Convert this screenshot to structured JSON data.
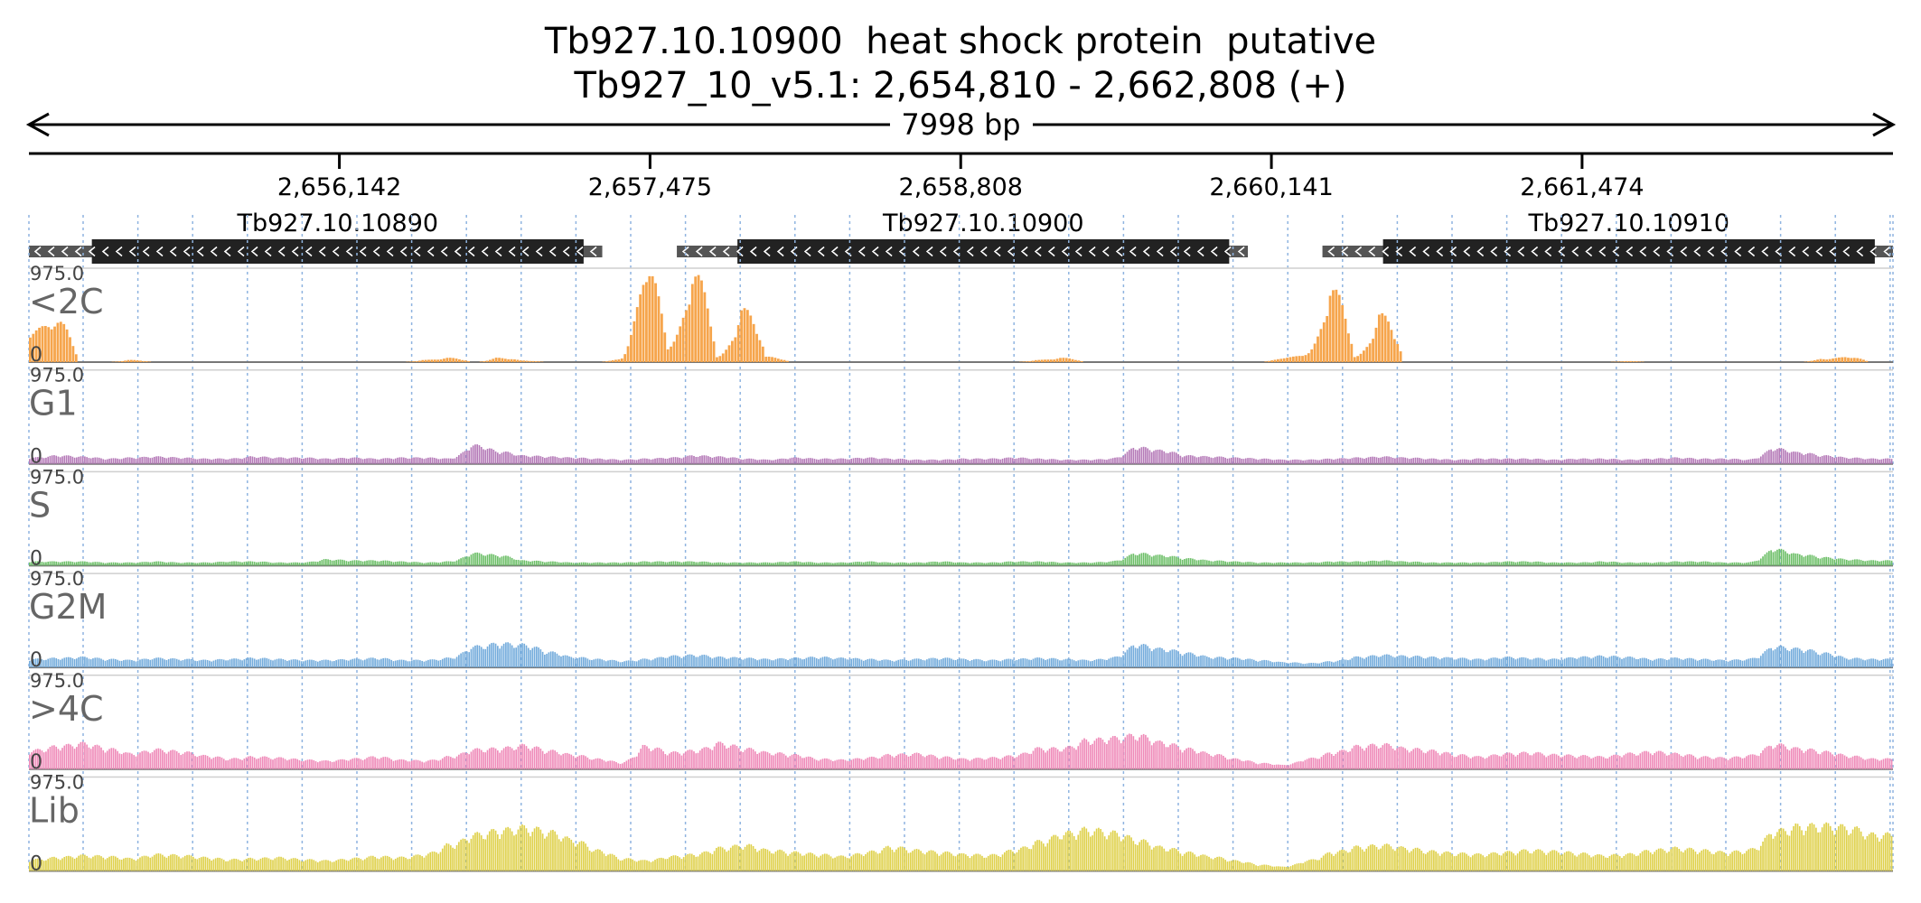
{
  "chart_data": {
    "type": "area",
    "title": "Tb927.10.10900  heat shock protein  putative",
    "subtitle": "Tb927_10_v5.1: 2,654,810 - 2,662,808 (+)",
    "span_label": "7998 bp",
    "x_range": [
      2654810,
      2662808
    ],
    "x_ticks": [
      2656142,
      2657475,
      2658808,
      2660141,
      2661474
    ],
    "x_tick_labels": [
      "2,656,142",
      "2,657,475",
      "2,658,808",
      "2,660,141",
      "2,661,474"
    ],
    "ylim": [
      0,
      975.0
    ],
    "y_max_label": "975.0",
    "y_min_label": "0",
    "genes": [
      {
        "name": "Tb927.10.10890",
        "utr_start": 2654810,
        "cds_start": 2655080,
        "cds_end": 2657190,
        "utr_end": 2657270,
        "strand": "-"
      },
      {
        "name": "Tb927.10.10900",
        "utr_start": 2657590,
        "cds_start": 2657850,
        "cds_end": 2659960,
        "utr_end": 2660040,
        "strand": "-"
      },
      {
        "name": "Tb927.10.10910",
        "utr_start": 2660360,
        "cds_start": 2660620,
        "cds_end": 2662730,
        "utr_end": 2662808,
        "strand": "-"
      }
    ],
    "series": [
      {
        "name": "<2C",
        "color": "#f6a54c",
        "bins": 8,
        "values": [
          300,
          400,
          0,
          0,
          20,
          0,
          0,
          0,
          0,
          0,
          0,
          0,
          0,
          0,
          0,
          0,
          20,
          40,
          0,
          40,
          15,
          0,
          0,
          0,
          30,
          900,
          150,
          850,
          50,
          500,
          50,
          0,
          0,
          0,
          0,
          0,
          0,
          0,
          0,
          0,
          0,
          20,
          40,
          0,
          0,
          0,
          0,
          0,
          0,
          0,
          0,
          40,
          80,
          700,
          50,
          450,
          0,
          0,
          0,
          0,
          0,
          0,
          0,
          0,
          0,
          10,
          0,
          0,
          0,
          0,
          0,
          0,
          0,
          30,
          50,
          0
        ]
      },
      {
        "name": "G1",
        "color": "#b57ab8",
        "bins": 12,
        "values": [
          60,
          80,
          70,
          50,
          60,
          70,
          60,
          50,
          50,
          70,
          60,
          60,
          50,
          60,
          50,
          60,
          60,
          50,
          180,
          120,
          80,
          70,
          60,
          50,
          40,
          50,
          60,
          80,
          70,
          50,
          40,
          60,
          50,
          50,
          60,
          50,
          40,
          40,
          50,
          50,
          60,
          50,
          40,
          40,
          50,
          160,
          130,
          80,
          70,
          60,
          50,
          40,
          40,
          50,
          60,
          70,
          60,
          50,
          40,
          50,
          50,
          50,
          40,
          50,
          50,
          40,
          50,
          60,
          50,
          50,
          40,
          150,
          110,
          80,
          60,
          50
        ]
      },
      {
        "name": "S",
        "color": "#6dbf68",
        "bins": 12,
        "values": [
          40,
          40,
          40,
          30,
          30,
          40,
          30,
          30,
          40,
          40,
          30,
          30,
          60,
          50,
          50,
          40,
          30,
          40,
          120,
          100,
          50,
          40,
          30,
          30,
          30,
          40,
          40,
          40,
          30,
          30,
          30,
          40,
          30,
          30,
          40,
          30,
          30,
          40,
          30,
          30,
          40,
          40,
          30,
          30,
          40,
          120,
          100,
          70,
          50,
          40,
          30,
          30,
          30,
          40,
          40,
          50,
          40,
          30,
          30,
          30,
          40,
          40,
          30,
          30,
          40,
          30,
          30,
          40,
          40,
          30,
          30,
          160,
          110,
          80,
          60,
          50
        ]
      },
      {
        "name": "G2M",
        "color": "#74acdc",
        "bins": 12,
        "values": [
          80,
          90,
          100,
          80,
          70,
          90,
          80,
          70,
          80,
          90,
          80,
          70,
          70,
          80,
          90,
          70,
          70,
          90,
          200,
          230,
          220,
          150,
          100,
          80,
          60,
          80,
          110,
          120,
          100,
          90,
          80,
          90,
          100,
          90,
          80,
          70,
          80,
          90,
          80,
          70,
          80,
          90,
          80,
          70,
          90,
          220,
          180,
          140,
          100,
          90,
          70,
          50,
          40,
          60,
          100,
          120,
          110,
          100,
          90,
          80,
          100,
          90,
          80,
          100,
          110,
          100,
          80,
          90,
          80,
          70,
          80,
          200,
          180,
          140,
          90,
          80
        ]
      },
      {
        "name": ">4C",
        "color": "#ef8bb9",
        "bins": 12,
        "values": [
          180,
          220,
          250,
          200,
          150,
          190,
          170,
          130,
          100,
          120,
          110,
          90,
          80,
          100,
          120,
          90,
          80,
          120,
          190,
          200,
          230,
          180,
          140,
          100,
          60,
          220,
          160,
          180,
          250,
          200,
          160,
          140,
          100,
          90,
          110,
          140,
          150,
          120,
          100,
          110,
          130,
          200,
          200,
          280,
          300,
          330,
          260,
          200,
          150,
          100,
          60,
          40,
          100,
          160,
          220,
          240,
          200,
          180,
          140,
          120,
          150,
          160,
          140,
          130,
          120,
          150,
          170,
          150,
          120,
          110,
          130,
          240,
          200,
          170,
          130,
          100
        ]
      },
      {
        "name": "Lib",
        "color": "#dfd14c",
        "bins": 12,
        "values": [
          110,
          130,
          150,
          140,
          120,
          160,
          150,
          130,
          110,
          120,
          130,
          110,
          100,
          120,
          140,
          130,
          160,
          250,
          350,
          390,
          420,
          380,
          300,
          200,
          120,
          100,
          140,
          160,
          220,
          250,
          200,
          180,
          160,
          140,
          180,
          230,
          200,
          180,
          160,
          150,
          200,
          280,
          360,
          400,
          370,
          300,
          230,
          180,
          140,
          100,
          60,
          40,
          100,
          180,
          230,
          250,
          220,
          190,
          170,
          160,
          180,
          200,
          190,
          170,
          150,
          160,
          200,
          220,
          200,
          180,
          200,
          380,
          430,
          440,
          420,
          350
        ]
      }
    ]
  }
}
